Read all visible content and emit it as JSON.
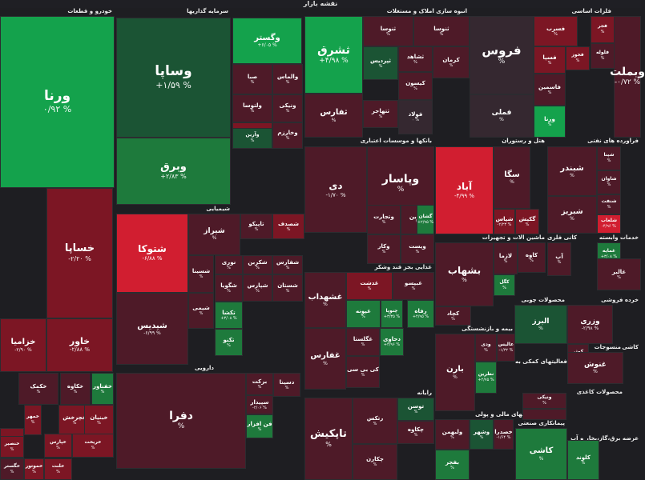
{
  "header": {
    "title": "نقشه بازار"
  },
  "colors": {
    "g3": "#14a24c",
    "g2": "#1e7a3c",
    "g1": "#1b5434",
    "n": "#352830",
    "r1": "#4e1a28",
    "r2": "#7c1624",
    "r3": "#d11e30"
  },
  "sections": [
    {
      "title": "خودرو و قطعات"
    },
    {
      "title": "سرمایه گذاریها"
    },
    {
      "title": "انبوه سازی املاک و مستغلات"
    },
    {
      "title": "فلزات اساسی"
    },
    {
      "title": "بانکها و موسسات اعتباری"
    },
    {
      "title": "هتل و رستوران"
    },
    {
      "title": "فراورده های نفتی"
    },
    {
      "title": "شیمیایی"
    },
    {
      "title": "ماشین آلات و تجهیزات"
    },
    {
      "title": "کانی فلزی"
    },
    {
      "title": "خدمات وابسته"
    },
    {
      "title": "غذایی بجز قند وشکر"
    },
    {
      "title": "محصولات چوبی"
    },
    {
      "title": "خرده فروشی"
    },
    {
      "title": "بیمه و بازنشستگی"
    },
    {
      "title": "منسوجات"
    },
    {
      "title": "فعالیتهای کمکی به"
    },
    {
      "title": "دارویی"
    },
    {
      "title": "رایانه"
    },
    {
      "title": "محصولات کاغذی"
    },
    {
      "title": "واسطه گریهای مالی و پولی"
    },
    {
      "title": "پیمانکاری صنعتی"
    },
    {
      "title": "عرضه برق،گاز،بخار و آب"
    },
    {
      "title": "کاشی"
    }
  ],
  "tiles": [
    {
      "name": "ورنا",
      "pct": "۰/۹۲ %",
      "c": "g3"
    },
    {
      "name": "خساپا",
      "pct": "-۲/۲۰ %",
      "c": "r2"
    },
    {
      "name": "خزامیا",
      "pct": "-۲/۹۰ %",
      "c": "r2"
    },
    {
      "name": "خاور",
      "pct": "-۲/۸۸ %",
      "c": "r2"
    },
    {
      "name": "خفناور",
      "pct": "%",
      "c": "g2"
    },
    {
      "name": "خکاوه",
      "pct": "%",
      "c": "r1"
    },
    {
      "name": "خکمک",
      "pct": "%",
      "c": "r1"
    },
    {
      "name": "خمهر",
      "pct": "%",
      "c": "r2"
    },
    {
      "name": "خچرخش",
      "pct": "%",
      "c": "r2"
    },
    {
      "name": "خبنیان",
      "pct": "%",
      "c": "r2"
    },
    {
      "name": "خمحرکه",
      "pct": "%",
      "c": "r2"
    },
    {
      "name": "خنصیر",
      "pct": "%",
      "c": "r2"
    },
    {
      "name": "خپارس",
      "pct": "%",
      "c": "r2"
    },
    {
      "name": "خریخت",
      "pct": "%",
      "c": "r2"
    },
    {
      "name": "خگستر",
      "pct": "%",
      "c": "r1"
    },
    {
      "name": "خموتور",
      "pct": "%",
      "c": "r2"
    },
    {
      "name": "خلنت",
      "pct": "%",
      "c": "r2"
    },
    {
      "name": "وساپا",
      "pct": "+۱/۵۹ %",
      "c": "g1"
    },
    {
      "name": "وبرق",
      "pct": "+۲/۸۳ %",
      "c": "g2"
    },
    {
      "name": "وگستر",
      "pct": "+۶/۰۵ %",
      "c": "g3"
    },
    {
      "name": "صبا",
      "pct": "%",
      "c": "r1"
    },
    {
      "name": "والماس",
      "pct": "%",
      "c": "r1"
    },
    {
      "name": "ونیکی",
      "pct": "%",
      "c": "r1"
    },
    {
      "name": "ولتوسا",
      "pct": "%",
      "c": "r1"
    },
    {
      "name": "وکغدیر",
      "pct": "%",
      "c": "r2"
    },
    {
      "name": "وآرین",
      "pct": "%",
      "c": "g1"
    },
    {
      "name": "وخارزم",
      "pct": "%",
      "c": "r1"
    },
    {
      "name": "ثشرق",
      "pct": "+۴/۹۸ %",
      "c": "g3"
    },
    {
      "name": "ثنوسا",
      "pct": "%",
      "c": "r1"
    },
    {
      "name": "ثنوسا",
      "pct": "%",
      "c": "r1"
    },
    {
      "name": "ثشاهد",
      "pct": "%",
      "c": "r1"
    },
    {
      "name": "کرمان",
      "pct": "%",
      "c": "r1"
    },
    {
      "name": "ثپردیس",
      "pct": "%",
      "c": "g1"
    },
    {
      "name": "ثفارس",
      "pct": "%",
      "c": "r1"
    },
    {
      "name": "کیسون",
      "pct": "%",
      "c": "r1"
    },
    {
      "name": "ثتهاجر",
      "pct": "%",
      "c": "r1"
    },
    {
      "name": "فولاد",
      "pct": "۰ %",
      "c": "n"
    },
    {
      "name": "فروس",
      "pct": "%",
      "c": "n"
    },
    {
      "name": "فملی",
      "pct": "%",
      "c": "n"
    },
    {
      "name": "فسرب",
      "pct": "%",
      "c": "r2"
    },
    {
      "name": "فجر",
      "pct": "%",
      "c": "r2"
    },
    {
      "name": "فلوله",
      "pct": "%",
      "c": "r1"
    },
    {
      "name": "فخوز",
      "pct": "%",
      "c": "r2"
    },
    {
      "name": "فسپا",
      "pct": "%",
      "c": "r2"
    },
    {
      "name": "فاسمین",
      "pct": "%",
      "c": "r1"
    },
    {
      "name": "ورنا",
      "pct": "%",
      "c": "g3"
    },
    {
      "name": "وبملت",
      "pct": "-۰/۷۲ %",
      "c": "r1"
    },
    {
      "name": "دی",
      "pct": "-۱/۷۰ %",
      "c": "r1"
    },
    {
      "name": "وپاسار",
      "pct": "%",
      "c": "r1"
    },
    {
      "name": "وتجارت",
      "pct": "%",
      "c": "r1"
    },
    {
      "name": "ونوین",
      "pct": "%",
      "c": "r1"
    },
    {
      "name": "وکار",
      "pct": "%",
      "c": "r1"
    },
    {
      "name": "وپست",
      "pct": "%",
      "c": "r1"
    },
    {
      "name": "گشان",
      "pct": "+۲/۹۵ %",
      "c": "g2"
    },
    {
      "name": "آباد",
      "pct": "-۴/۹۹ %",
      "c": "r3"
    },
    {
      "name": "سگا",
      "pct": "%",
      "c": "r1"
    },
    {
      "name": "گکیش",
      "pct": "%",
      "c": "r2"
    },
    {
      "name": "شپاس",
      "pct": "-۲/۲۳ %",
      "c": "r2"
    },
    {
      "name": "شبندر",
      "pct": "%",
      "c": "r1"
    },
    {
      "name": "شپنا",
      "pct": "%",
      "c": "r1"
    },
    {
      "name": "شاوان",
      "pct": "%",
      "c": "r1"
    },
    {
      "name": "شبریز",
      "pct": "%",
      "c": "r1"
    },
    {
      "name": "شنفت",
      "pct": "%",
      "c": "r1"
    },
    {
      "name": "شلعاب",
      "pct": "-۴/۹۶ %",
      "c": "r3"
    },
    {
      "name": "شتوکا",
      "pct": "-۶/۸۸ %",
      "c": "r3"
    },
    {
      "name": "شیدیس",
      "pct": "-۶/۹۹ %",
      "c": "r1"
    },
    {
      "name": "شیراز",
      "pct": "%",
      "c": "r1"
    },
    {
      "name": "تاپیکو",
      "pct": "%",
      "c": "r1"
    },
    {
      "name": "شصدف",
      "pct": "%",
      "c": "r2"
    },
    {
      "name": "شسینا",
      "pct": "%",
      "c": "r1"
    },
    {
      "name": "نوری",
      "pct": "%",
      "c": "r1"
    },
    {
      "name": "شفارس",
      "pct": "%",
      "c": "r1"
    },
    {
      "name": "شکربن",
      "pct": "%",
      "c": "r1"
    },
    {
      "name": "شگویا",
      "pct": "%",
      "c": "r1"
    },
    {
      "name": "شستان",
      "pct": "%",
      "c": "r1"
    },
    {
      "name": "شپارس",
      "pct": "%",
      "c": "r1"
    },
    {
      "name": "شیمی",
      "pct": "%",
      "c": "r1"
    },
    {
      "name": "تکشا",
      "pct": "+۳/۰۸ %",
      "c": "g2"
    },
    {
      "name": "تکنو",
      "pct": "%",
      "c": "g2"
    },
    {
      "name": "بشهاب",
      "pct": "%",
      "c": "r1"
    },
    {
      "name": "لازما",
      "pct": "%",
      "c": "r1"
    },
    {
      "name": "کگل",
      "pct": "%",
      "c": "g2"
    },
    {
      "name": "کچاد",
      "pct": "%",
      "c": "r1"
    },
    {
      "name": "کاوه",
      "pct": "%",
      "c": "r1"
    },
    {
      "name": "آپ",
      "pct": "%",
      "c": "r1"
    },
    {
      "name": "غمایه",
      "pct": "+۳/۰۸ %",
      "c": "g2"
    },
    {
      "name": "غالبر",
      "pct": "%",
      "c": "r1"
    },
    {
      "name": "غشهداب",
      "pct": "%",
      "c": "r1"
    },
    {
      "name": "غدشت",
      "pct": "%",
      "c": "r2"
    },
    {
      "name": "غبیسو",
      "pct": "%",
      "c": "r1"
    },
    {
      "name": "غپونه",
      "pct": "%",
      "c": "g2"
    },
    {
      "name": "چنوپا",
      "pct": "+۳/۳۵ %",
      "c": "g2"
    },
    {
      "name": "رفاه",
      "pct": "+۴/۹۵ %",
      "c": "g2"
    },
    {
      "name": "البرز",
      "pct": "%",
      "c": "g1"
    },
    {
      "name": "وزری",
      "pct": "-۲/۹۸ %",
      "c": "r1"
    },
    {
      "name": "کوثر",
      "pct": "%",
      "c": "r1"
    },
    {
      "name": "بارن",
      "pct": "%",
      "c": "r1"
    },
    {
      "name": "ودی",
      "pct": "%",
      "c": "r1"
    },
    {
      "name": "نطرین",
      "pct": "+۲/۷۵ %",
      "c": "g2"
    },
    {
      "name": "عالیس",
      "pct": "-۱/۳۲ %",
      "c": "r1"
    },
    {
      "name": "غنوش",
      "pct": "%",
      "c": "r1"
    },
    {
      "name": "غفارس",
      "pct": "%",
      "c": "r1"
    },
    {
      "name": "غگلستا",
      "pct": "%",
      "c": "r1"
    },
    {
      "name": "دحاوی",
      "pct": "+۲/۹۶ %",
      "c": "g2"
    },
    {
      "name": "کی بی سی",
      "pct": "%",
      "c": "r1"
    },
    {
      "name": "دفرا",
      "pct": "%",
      "c": "r1"
    },
    {
      "name": "برکت",
      "pct": "%",
      "c": "r1"
    },
    {
      "name": "دسینا",
      "pct": "%",
      "c": "r1"
    },
    {
      "name": "سپیدار",
      "pct": "-۲/۰۶ %",
      "c": "r1"
    },
    {
      "name": "فن افزار",
      "pct": "%",
      "c": "g2"
    },
    {
      "name": "تاپکیش",
      "pct": "%",
      "c": "r1"
    },
    {
      "name": "رتکس",
      "pct": "%",
      "c": "r1"
    },
    {
      "name": "توسن",
      "pct": "%",
      "c": "g1"
    },
    {
      "name": "چکاوه",
      "pct": "%",
      "c": "r1"
    },
    {
      "name": "چکارن",
      "pct": "%",
      "c": "r1"
    },
    {
      "name": "ونیکی",
      "pct": "%",
      "c": "r1"
    },
    {
      "name": "وپارس",
      "pct": "%",
      "c": "r1"
    },
    {
      "name": "ولبهمن",
      "pct": "%",
      "c": "r1"
    },
    {
      "name": "وشهر",
      "pct": "%",
      "c": "g1"
    },
    {
      "name": "خصدرا",
      "pct": "-۱/۶۴ %",
      "c": "r1"
    },
    {
      "name": "بفجر",
      "pct": "%",
      "c": "g2"
    },
    {
      "name": "کاشی",
      "pct": "%",
      "c": "g2"
    },
    {
      "name": "کلوند",
      "pct": "%",
      "c": "g2"
    }
  ]
}
